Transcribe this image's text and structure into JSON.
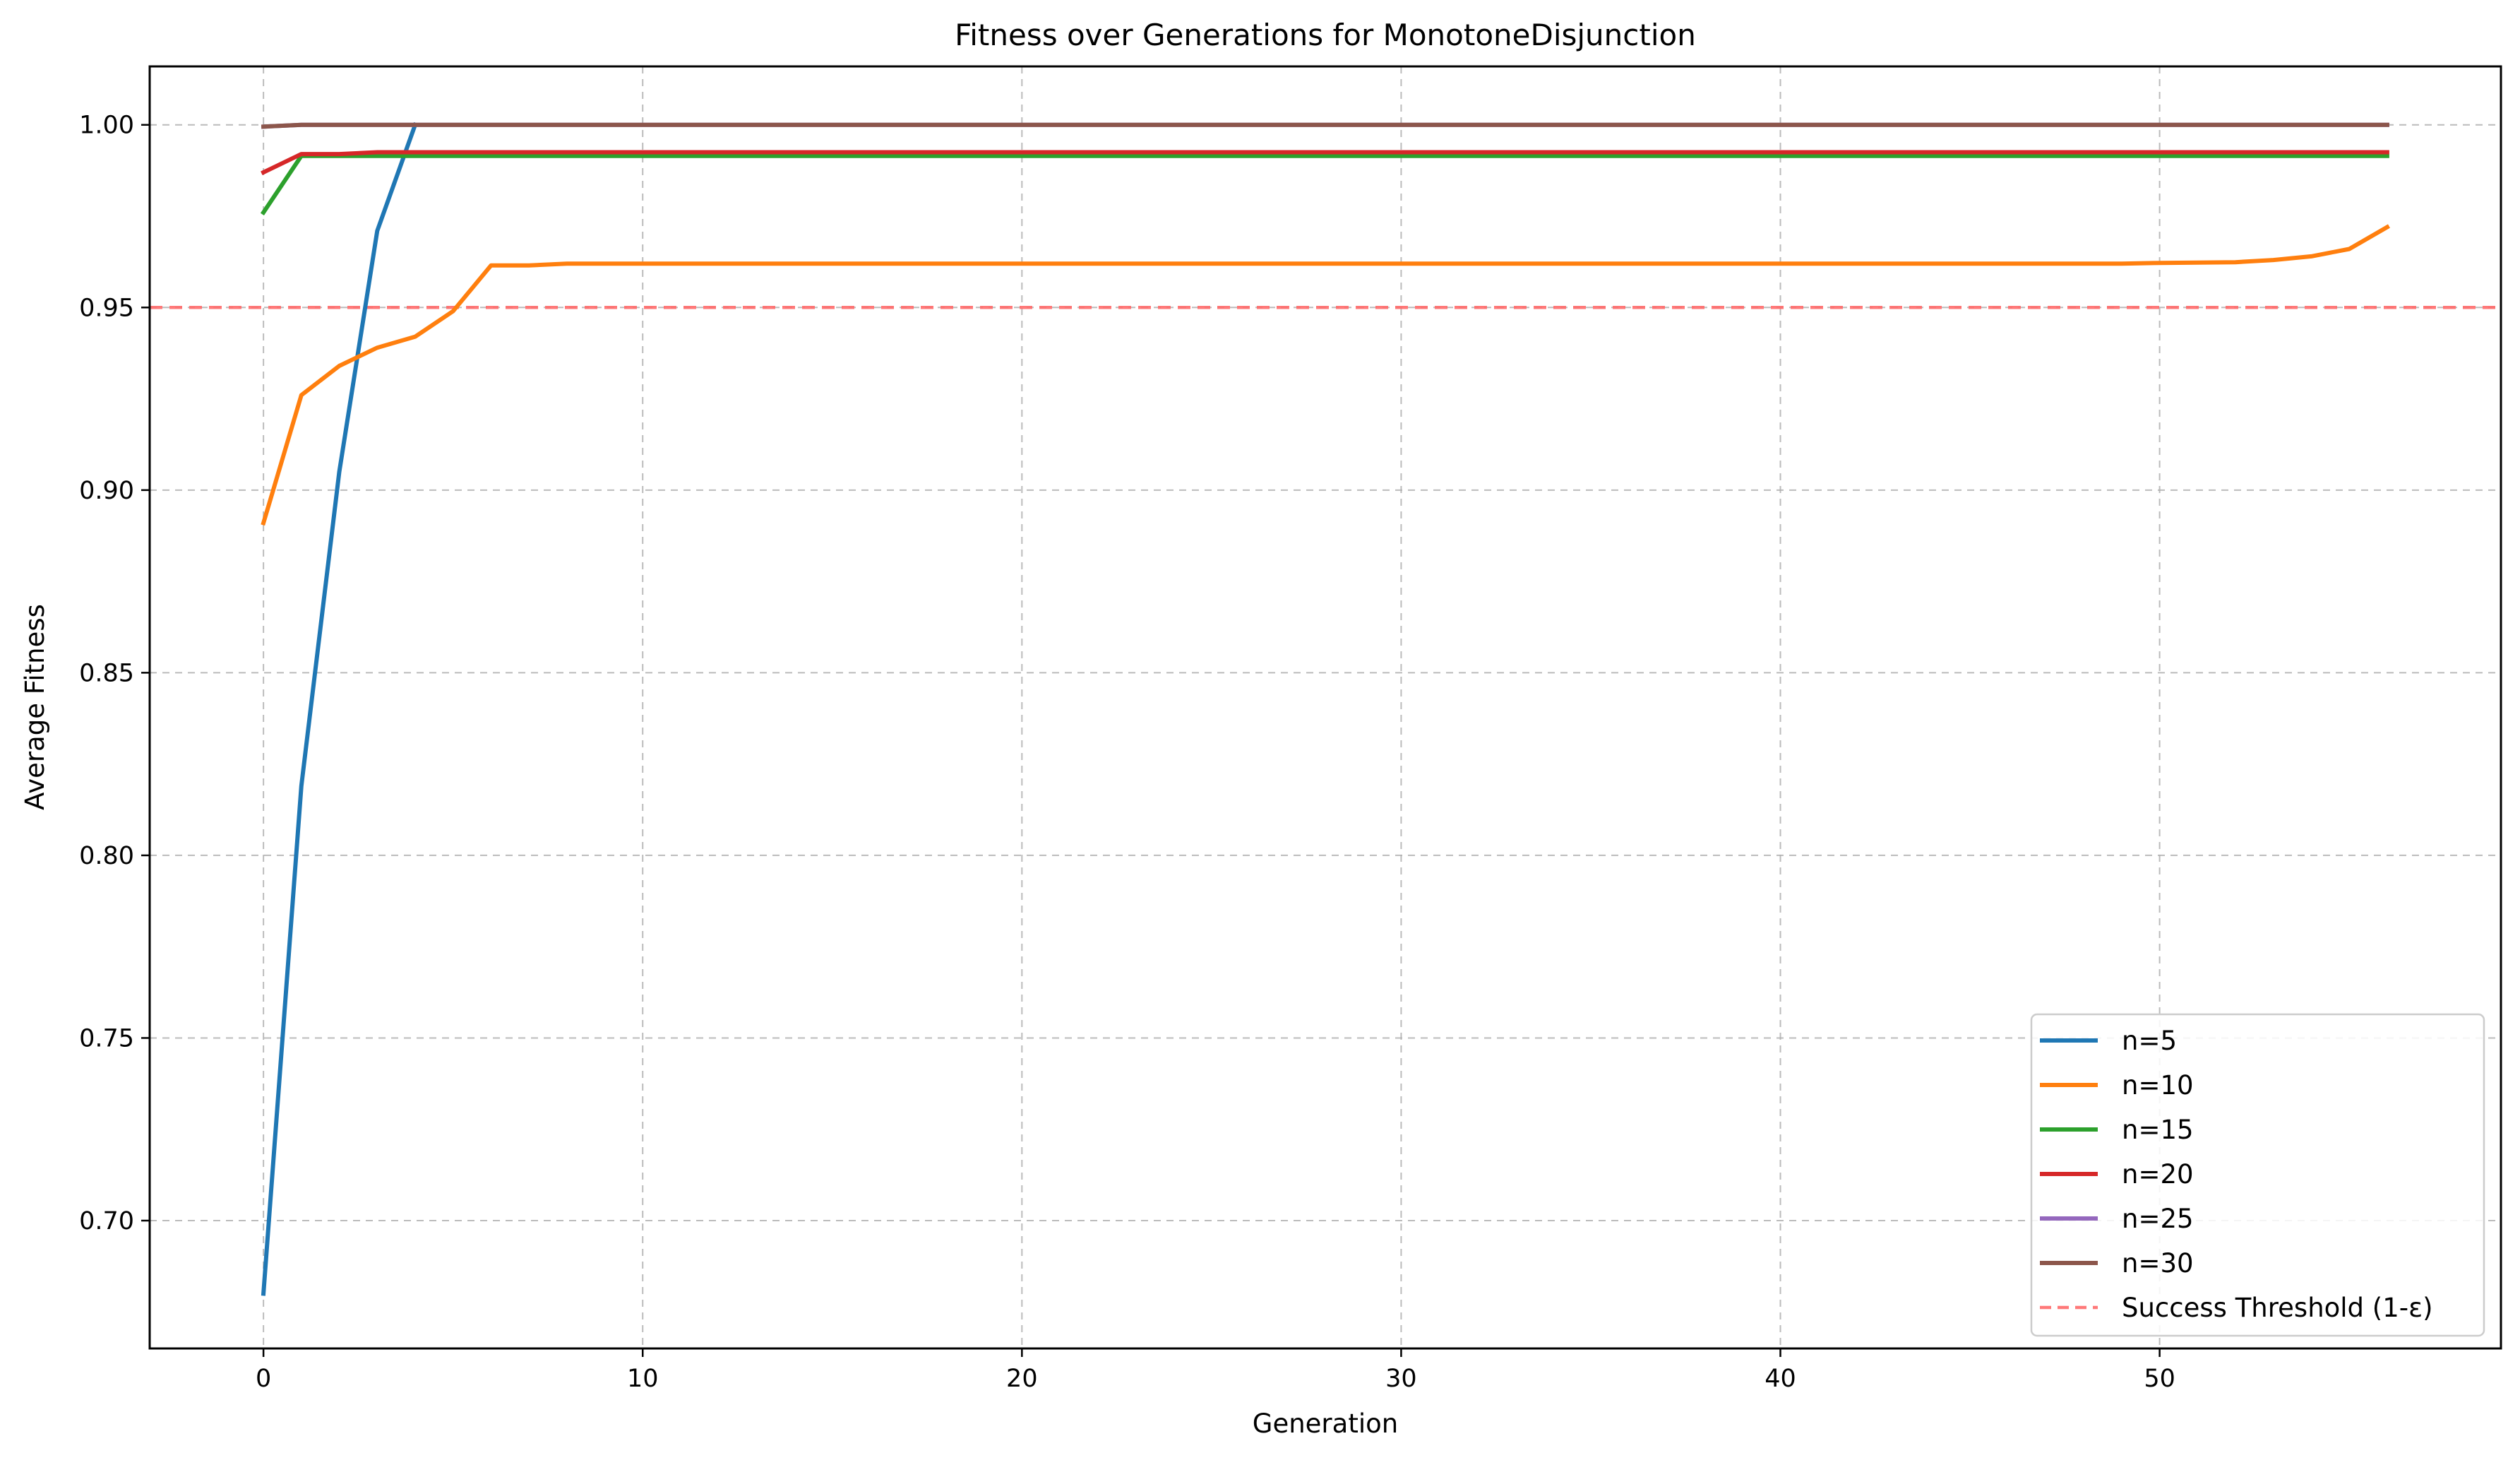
{
  "chart_data": {
    "type": "line",
    "title": "Fitness over Generations for MonotoneDisjunction",
    "xlabel": "Generation",
    "ylabel": "Average Fitness",
    "xlim": [
      -3,
      59
    ],
    "ylim": [
      0.665,
      1.016
    ],
    "xticks": [
      0,
      10,
      20,
      30,
      40,
      50
    ],
    "xtick_labels": [
      "0",
      "10",
      "20",
      "30",
      "40",
      "50"
    ],
    "yticks": [
      0.7,
      0.75,
      0.8,
      0.85,
      0.9,
      0.95,
      1.0
    ],
    "ytick_labels": [
      "0.70",
      "0.75",
      "0.80",
      "0.85",
      "0.90",
      "0.95",
      "1.00"
    ],
    "grid": true,
    "legend_position": "lower right",
    "series": [
      {
        "name": "n=5",
        "color": "#1f77b4",
        "x": [
          0,
          1,
          2,
          3,
          4
        ],
        "y": [
          0.68,
          0.819,
          0.905,
          0.971,
          1.0
        ]
      },
      {
        "name": "n=10",
        "color": "#ff7f0e",
        "x": [
          0,
          1,
          2,
          3,
          4,
          5,
          6,
          7,
          8,
          10,
          15,
          20,
          30,
          40,
          49,
          50,
          52,
          53,
          54,
          55,
          56
        ],
        "y": [
          0.891,
          0.926,
          0.934,
          0.939,
          0.942,
          0.949,
          0.9615,
          0.9615,
          0.962,
          0.962,
          0.962,
          0.962,
          0.962,
          0.962,
          0.962,
          0.9622,
          0.9624,
          0.963,
          0.964,
          0.966,
          0.972
        ]
      },
      {
        "name": "n=15",
        "color": "#2ca02c",
        "x": [
          0,
          1,
          2,
          56
        ],
        "y": [
          0.976,
          0.9915,
          0.9915,
          0.9915
        ]
      },
      {
        "name": "n=20",
        "color": "#d62728",
        "x": [
          0,
          1,
          2,
          3,
          56
        ],
        "y": [
          0.987,
          0.992,
          0.992,
          0.9925,
          0.9925
        ]
      },
      {
        "name": "n=25",
        "color": "#9467bd",
        "x": [
          0,
          1,
          56
        ],
        "y": [
          0.9995,
          1.0,
          1.0
        ]
      },
      {
        "name": "n=30",
        "color": "#8c564b",
        "x": [
          0,
          1,
          56
        ],
        "y": [
          0.9995,
          1.0,
          1.0
        ]
      }
    ],
    "threshold": {
      "name": "Success Threshold (1-ε)",
      "y": 0.95,
      "color": "#ff6b6b",
      "style": "dashed"
    }
  }
}
